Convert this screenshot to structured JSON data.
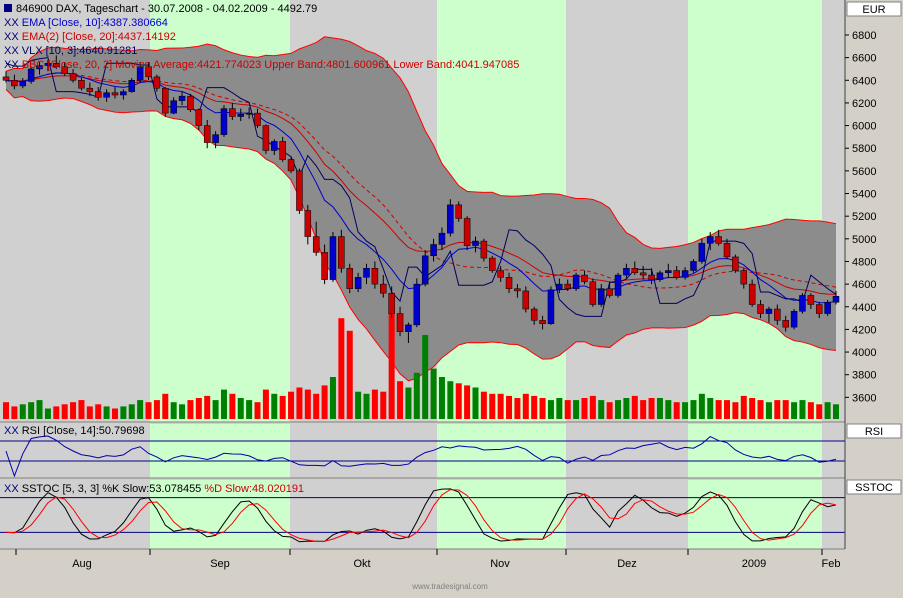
{
  "header": {
    "title": "846900  DAX, Tageschart - 30.07.2008 - 04.02.2009 - 4492.79",
    "legend": [
      {
        "prefix": "XX",
        "text": "EMA [Close, 10]:4387.380664",
        "color": "#0000cc"
      },
      {
        "prefix": "XX",
        "text": "EMA(2) [Close, 20]:4437.14192",
        "color": "#cc0000"
      },
      {
        "prefix": "XX",
        "text": "VLX [10, 3]:4640.91281",
        "color": "#000060"
      },
      {
        "prefix": "XX",
        "text": "BBC [Close, 20, 2] Moving Average:4421.774023 Upper Band:4801.600961 Lower Band:4041.947085",
        "color": "#cc0000"
      }
    ]
  },
  "panes": {
    "price_axis_title": "EUR",
    "rsi_title": "RSI",
    "rsi_legend": "RSI [Close, 14]:50.79698",
    "sstoc_title": "SSTOC",
    "sstoc_legend_k": "SSTOC [5, 3, 3] %K Slow:53.078455",
    "sstoc_legend_d": "%D Slow:48.020191"
  },
  "watermark": "www.tradesignal.com",
  "colors": {
    "bull": "#0000cc",
    "bear": "#cc0000",
    "vol_up": "#008000",
    "vol_down": "#ff0000",
    "band_fill": "#8c8c8c",
    "band_line": "#ff0000",
    "green_zone": "#ccffcc",
    "grey_zone": "#d0d0d0",
    "ema10": "#0000cc",
    "ema20": "#cc0000",
    "vlx": "#000060",
    "rsi_line": "#0000aa",
    "k_line": "#000000",
    "d_line": "#ff0000"
  },
  "chart_data": {
    "type": "candlestick",
    "x_axis": {
      "labels": [
        "Aug",
        "Sep",
        "Okt",
        "Nov",
        "Dez",
        "2009",
        "Feb"
      ]
    },
    "price_axis": {
      "ticks": [
        3600,
        3800,
        4000,
        4200,
        4400,
        4600,
        4800,
        5000,
        5200,
        5400,
        5600,
        5800,
        6000,
        6200,
        6400,
        6600,
        6800
      ],
      "ylim": [
        3400,
        6950
      ],
      "unit": "EUR"
    },
    "rsi_axis": {
      "ticks": [
        20
      ],
      "levels": [
        70,
        30
      ]
    },
    "sstoc_axis": {
      "ticks": [
        25,
        0
      ],
      "levels": [
        80,
        20
      ]
    },
    "candles": [
      [
        6430,
        6480,
        6380,
        6400
      ],
      [
        6400,
        6450,
        6320,
        6350
      ],
      [
        6350,
        6420,
        6330,
        6390
      ],
      [
        6390,
        6520,
        6370,
        6500
      ],
      [
        6500,
        6560,
        6450,
        6530
      ],
      [
        6530,
        6580,
        6480,
        6550
      ],
      [
        6550,
        6620,
        6500,
        6520
      ],
      [
        6520,
        6560,
        6440,
        6460
      ],
      [
        6460,
        6500,
        6380,
        6400
      ],
      [
        6400,
        6420,
        6310,
        6330
      ],
      [
        6330,
        6380,
        6260,
        6300
      ],
      [
        6300,
        6340,
        6220,
        6250
      ],
      [
        6250,
        6320,
        6210,
        6290
      ],
      [
        6290,
        6340,
        6240,
        6270
      ],
      [
        6270,
        6320,
        6230,
        6300
      ],
      [
        6300,
        6420,
        6290,
        6400
      ],
      [
        6400,
        6560,
        6380,
        6520
      ],
      [
        6520,
        6560,
        6400,
        6430
      ],
      [
        6430,
        6450,
        6300,
        6330
      ],
      [
        6330,
        6340,
        6080,
        6110
      ],
      [
        6110,
        6250,
        6100,
        6220
      ],
      [
        6220,
        6300,
        6180,
        6260
      ],
      [
        6260,
        6280,
        6120,
        6140
      ],
      [
        6140,
        6150,
        5960,
        6000
      ],
      [
        6000,
        6050,
        5800,
        5850
      ],
      [
        5850,
        5950,
        5800,
        5920
      ],
      [
        5920,
        6180,
        5900,
        6150
      ],
      [
        6150,
        6200,
        6050,
        6080
      ],
      [
        6080,
        6150,
        6040,
        6100
      ],
      [
        6100,
        6160,
        6060,
        6110
      ],
      [
        6110,
        6150,
        5980,
        6000
      ],
      [
        6000,
        6010,
        5750,
        5780
      ],
      [
        5780,
        5880,
        5740,
        5860
      ],
      [
        5860,
        5900,
        5680,
        5700
      ],
      [
        5700,
        5720,
        5580,
        5600
      ],
      [
        5600,
        5620,
        5220,
        5250
      ],
      [
        5250,
        5300,
        4950,
        5020
      ],
      [
        5020,
        5150,
        4850,
        4880
      ],
      [
        4880,
        4950,
        4600,
        4640
      ],
      [
        4640,
        5060,
        4620,
        5020
      ],
      [
        5020,
        5080,
        4700,
        4740
      ],
      [
        4740,
        4780,
        4520,
        4560
      ],
      [
        4560,
        4700,
        4530,
        4660
      ],
      [
        4660,
        4780,
        4600,
        4740
      ],
      [
        4740,
        4800,
        4560,
        4600
      ],
      [
        4600,
        4680,
        4480,
        4520
      ],
      [
        4520,
        4580,
        4300,
        4340
      ],
      [
        4340,
        4400,
        4140,
        4180
      ],
      [
        4180,
        4260,
        4080,
        4240
      ],
      [
        4240,
        4650,
        4220,
        4600
      ],
      [
        4600,
        4900,
        4580,
        4850
      ],
      [
        4850,
        5000,
        4800,
        4950
      ],
      [
        4950,
        5100,
        4900,
        5050
      ],
      [
        5050,
        5350,
        5020,
        5300
      ],
      [
        5300,
        5330,
        5150,
        5180
      ],
      [
        5180,
        5200,
        4900,
        4940
      ],
      [
        4940,
        5020,
        4880,
        4980
      ],
      [
        4980,
        5000,
        4800,
        4830
      ],
      [
        4830,
        4850,
        4700,
        4720
      ],
      [
        4720,
        4760,
        4620,
        4660
      ],
      [
        4660,
        4700,
        4520,
        4560
      ],
      [
        4560,
        4600,
        4480,
        4540
      ],
      [
        4540,
        4580,
        4350,
        4380
      ],
      [
        4380,
        4400,
        4240,
        4280
      ],
      [
        4280,
        4320,
        4200,
        4250
      ],
      [
        4250,
        4580,
        4240,
        4550
      ],
      [
        4550,
        4650,
        4520,
        4600
      ],
      [
        4600,
        4640,
        4540,
        4560
      ],
      [
        4560,
        4700,
        4540,
        4680
      ],
      [
        4680,
        4720,
        4600,
        4620
      ],
      [
        4620,
        4650,
        4400,
        4420
      ],
      [
        4420,
        4600,
        4400,
        4560
      ],
      [
        4560,
        4620,
        4480,
        4500
      ],
      [
        4500,
        4700,
        4480,
        4680
      ],
      [
        4680,
        4780,
        4650,
        4740
      ],
      [
        4740,
        4800,
        4680,
        4700
      ],
      [
        4700,
        4760,
        4640,
        4680
      ],
      [
        4680,
        4740,
        4600,
        4640
      ],
      [
        4640,
        4720,
        4620,
        4700
      ],
      [
        4700,
        4780,
        4660,
        4720
      ],
      [
        4720,
        4760,
        4640,
        4660
      ],
      [
        4660,
        4750,
        4640,
        4720
      ],
      [
        4720,
        4820,
        4700,
        4800
      ],
      [
        4800,
        5000,
        4780,
        4960
      ],
      [
        4960,
        5060,
        4900,
        5020
      ],
      [
        5020,
        5080,
        4940,
        4960
      ],
      [
        4960,
        5000,
        4820,
        4840
      ],
      [
        4840,
        4860,
        4700,
        4720
      ],
      [
        4720,
        4740,
        4560,
        4600
      ],
      [
        4600,
        4640,
        4400,
        4420
      ],
      [
        4420,
        4460,
        4300,
        4340
      ],
      [
        4340,
        4400,
        4260,
        4380
      ],
      [
        4380,
        4420,
        4240,
        4280
      ],
      [
        4280,
        4320,
        4180,
        4220
      ],
      [
        4220,
        4380,
        4200,
        4360
      ],
      [
        4360,
        4520,
        4340,
        4500
      ],
      [
        4500,
        4520,
        4380,
        4420
      ],
      [
        4420,
        4440,
        4300,
        4340
      ],
      [
        4340,
        4460,
        4320,
        4440
      ],
      [
        4440,
        4540,
        4420,
        4493
      ]
    ],
    "volume": [
      8,
      6,
      7,
      8,
      9,
      5,
      6,
      7,
      8,
      9,
      6,
      7,
      6,
      5,
      6,
      7,
      9,
      8,
      9,
      12,
      8,
      7,
      9,
      10,
      11,
      9,
      14,
      12,
      10,
      9,
      8,
      14,
      12,
      11,
      13,
      15,
      14,
      12,
      16,
      20,
      15,
      17,
      13,
      12,
      14,
      13,
      16,
      18,
      15,
      22,
      28,
      24,
      20,
      18,
      17,
      16,
      15,
      13,
      12,
      12,
      11,
      10,
      12,
      11,
      10,
      9,
      10,
      9,
      9,
      10,
      11,
      9,
      8,
      9,
      10,
      11,
      9,
      10,
      10,
      9,
      8,
      8,
      9,
      12,
      10,
      9,
      9,
      8,
      11,
      10,
      9,
      8,
      9,
      9,
      8,
      9,
      8,
      7,
      8,
      7
    ],
    "volume_spikes": {
      "40": 48,
      "41": 42,
      "46": 60,
      "50": 40
    }
  }
}
